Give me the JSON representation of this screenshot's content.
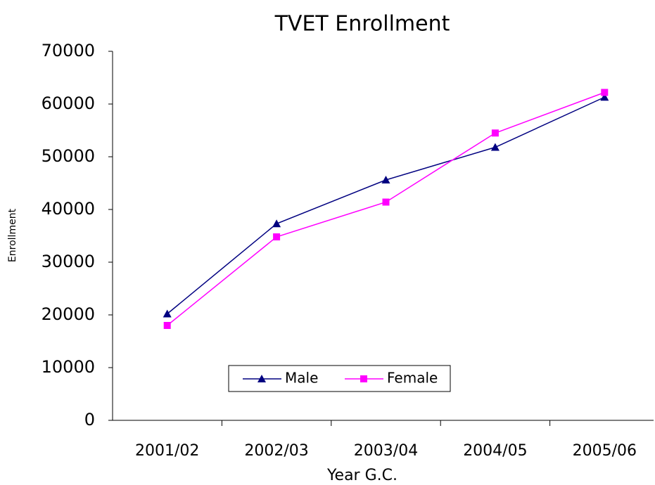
{
  "chart_data": {
    "type": "line",
    "title": "TVET Enrollment",
    "x_label": "Year G.C.",
    "y_label": "Enrollment",
    "categories": [
      "2001/02",
      "2002/03",
      "2003/04",
      "2004/05",
      "2005/06"
    ],
    "series": [
      {
        "name": "Male",
        "color": "#000080",
        "marker": "triangle",
        "values": [
          20200,
          37300,
          45600,
          51800,
          61300
        ]
      },
      {
        "name": "Female",
        "color": "#ff00ff",
        "marker": "square",
        "values": [
          18000,
          34800,
          41400,
          54500,
          62200
        ]
      }
    ],
    "ylim": [
      0,
      70000
    ],
    "yticks": [
      0,
      10000,
      20000,
      30000,
      40000,
      50000,
      60000,
      70000
    ]
  }
}
